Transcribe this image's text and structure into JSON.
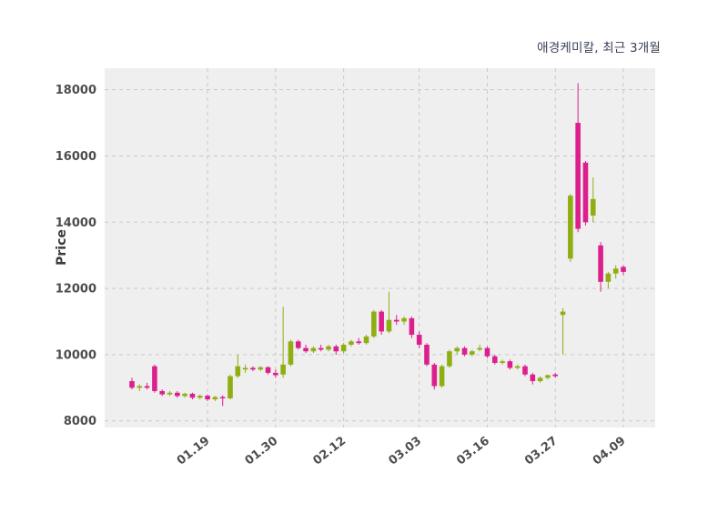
{
  "chart_data": {
    "type": "candlestick",
    "title": "애경케미칼, 최근 3개월",
    "ylabel": "Price",
    "ylim": [
      7800,
      18650
    ],
    "yticks": [
      8000,
      10000,
      12000,
      14000,
      16000,
      18000
    ],
    "xticks": [
      "01.19",
      "01.30",
      "02.12",
      "03.03",
      "03.16",
      "03.27",
      "04.09"
    ],
    "grid": "dashed",
    "legend": "none",
    "colors": {
      "up": "#8fae12",
      "down": "#dd1f8e",
      "plot_bg": "#efefef",
      "grid": "#c9c9c9"
    },
    "columns": [
      "date",
      "open",
      "high",
      "low",
      "close"
    ],
    "candles": [
      [
        "01.05",
        9200,
        9300,
        8950,
        9000
      ],
      [
        "01.06",
        9000,
        9100,
        8900,
        9050
      ],
      [
        "01.07",
        9050,
        9150,
        8950,
        9000
      ],
      [
        "01.08",
        9650,
        9700,
        8850,
        8900
      ],
      [
        "01.09",
        8900,
        8950,
        8750,
        8800
      ],
      [
        "01.12",
        8800,
        8900,
        8750,
        8850
      ],
      [
        "01.13",
        8850,
        8900,
        8700,
        8750
      ],
      [
        "01.14",
        8750,
        8850,
        8700,
        8820
      ],
      [
        "01.15",
        8820,
        8850,
        8650,
        8700
      ],
      [
        "01.16",
        8700,
        8800,
        8650,
        8760
      ],
      [
        "01.19",
        8760,
        8800,
        8600,
        8650
      ],
      [
        "01.20",
        8650,
        8750,
        8600,
        8720
      ],
      [
        "01.21",
        8720,
        8770,
        8450,
        8680
      ],
      [
        "01.22",
        8680,
        9400,
        8650,
        9350
      ],
      [
        "01.23",
        9350,
        10000,
        9300,
        9650
      ],
      [
        "01.26",
        9550,
        9700,
        9450,
        9600
      ],
      [
        "01.27",
        9600,
        9650,
        9500,
        9550
      ],
      [
        "01.28",
        9550,
        9650,
        9500,
        9620
      ],
      [
        "01.29",
        9620,
        9650,
        9400,
        9450
      ],
      [
        "01.30",
        9450,
        9550,
        9300,
        9380
      ],
      [
        "02.02",
        9400,
        11450,
        9300,
        9700
      ],
      [
        "02.03",
        9700,
        10450,
        9650,
        10400
      ],
      [
        "02.04",
        10400,
        10450,
        10150,
        10200
      ],
      [
        "02.05",
        10200,
        10300,
        10050,
        10100
      ],
      [
        "02.06",
        10100,
        10250,
        10050,
        10200
      ],
      [
        "02.09",
        10200,
        10300,
        10100,
        10150
      ],
      [
        "02.10",
        10150,
        10300,
        10100,
        10250
      ],
      [
        "02.11",
        10250,
        10300,
        10000,
        10100
      ],
      [
        "02.12",
        10100,
        10350,
        10050,
        10300
      ],
      [
        "02.13",
        10300,
        10450,
        10250,
        10400
      ],
      [
        "02.16",
        10400,
        10500,
        10300,
        10350
      ],
      [
        "02.17",
        10350,
        10600,
        10300,
        10550
      ],
      [
        "02.23",
        10550,
        11350,
        10500,
        11300
      ],
      [
        "02.24",
        11300,
        11350,
        10600,
        10700
      ],
      [
        "02.25",
        10700,
        11900,
        10650,
        11050
      ],
      [
        "02.26",
        11050,
        11200,
        10900,
        11000
      ],
      [
        "02.27",
        11000,
        11150,
        10900,
        11100
      ],
      [
        "03.02",
        11100,
        11150,
        10500,
        10600
      ],
      [
        "03.03",
        10600,
        10700,
        10200,
        10300
      ],
      [
        "03.04",
        10300,
        10350,
        9650,
        9700
      ],
      [
        "03.05",
        9700,
        9750,
        8950,
        9050
      ],
      [
        "03.06",
        9050,
        9700,
        9000,
        9650
      ],
      [
        "03.09",
        9650,
        10150,
        9600,
        10100
      ],
      [
        "03.10",
        10100,
        10250,
        10000,
        10200
      ],
      [
        "03.11",
        10200,
        10250,
        9950,
        10000
      ],
      [
        "03.12",
        10000,
        10150,
        9950,
        10100
      ],
      [
        "03.13",
        10150,
        10300,
        10100,
        10200
      ],
      [
        "03.16",
        10200,
        10250,
        9900,
        9950
      ],
      [
        "03.17",
        9950,
        10000,
        9700,
        9750
      ],
      [
        "03.18",
        9750,
        9850,
        9700,
        9800
      ],
      [
        "03.19",
        9800,
        9850,
        9550,
        9600
      ],
      [
        "03.20",
        9600,
        9700,
        9550,
        9650
      ],
      [
        "03.23",
        9650,
        9700,
        9350,
        9400
      ],
      [
        "03.24",
        9400,
        9450,
        9100,
        9200
      ],
      [
        "03.25",
        9200,
        9350,
        9150,
        9300
      ],
      [
        "03.26",
        9300,
        9400,
        9250,
        9380
      ],
      [
        "03.27",
        9400,
        9450,
        9300,
        9350
      ],
      [
        "03.30",
        11200,
        11400,
        10000,
        11300
      ],
      [
        "03.31",
        12900,
        14850,
        12800,
        14800
      ],
      [
        "04.01",
        17000,
        18200,
        13700,
        13800
      ],
      [
        "04.02",
        15800,
        15850,
        13900,
        14000
      ],
      [
        "04.03",
        14200,
        15350,
        14000,
        14700
      ],
      [
        "04.06",
        13300,
        13400,
        11900,
        12200
      ],
      [
        "04.07",
        12200,
        12500,
        12000,
        12450
      ],
      [
        "04.08",
        12450,
        12700,
        12300,
        12600
      ],
      [
        "04.09",
        12650,
        12700,
        12400,
        12500
      ]
    ]
  }
}
